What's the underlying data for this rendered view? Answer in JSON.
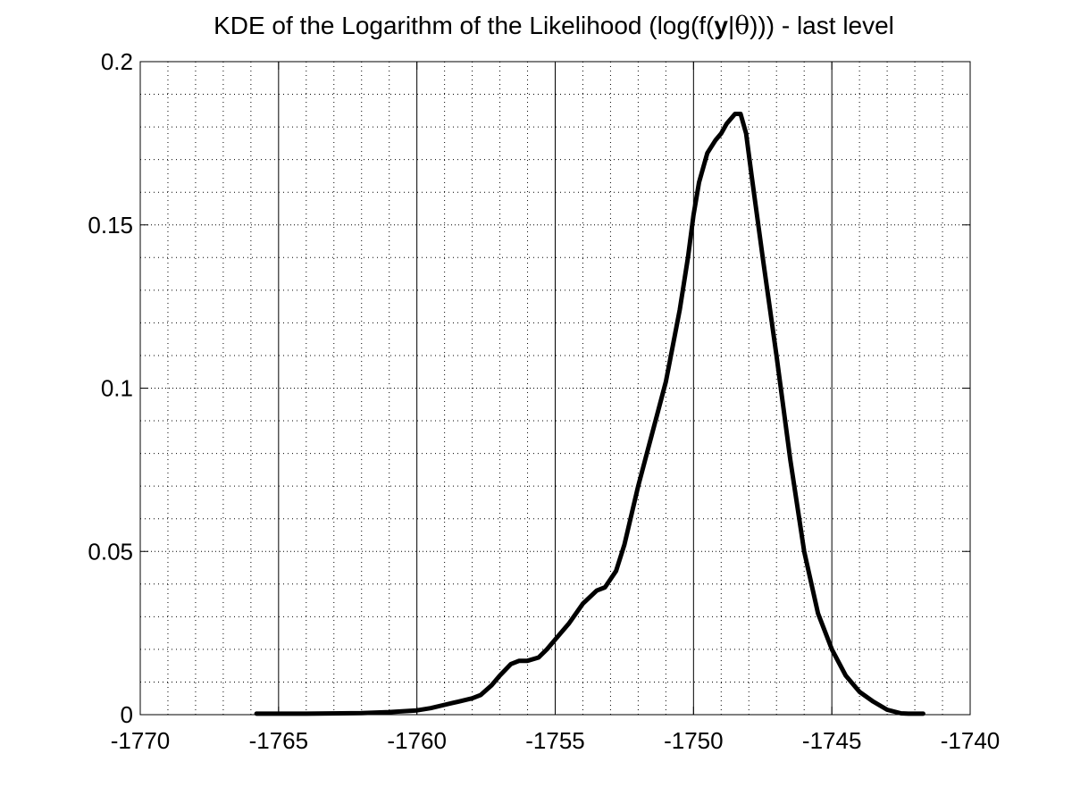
{
  "chart_data": {
    "type": "line",
    "title": {
      "prefix": "KDE of the Logarithm of the Likelihood (log(f(",
      "bold": "y",
      "bar": "|",
      "theta": "θ",
      "suffix": "))) - last level"
    },
    "xlabel": "",
    "ylabel": "",
    "xlim": [
      -1770,
      -1740
    ],
    "ylim": [
      0,
      0.2
    ],
    "xticks": [
      -1770,
      -1765,
      -1760,
      -1755,
      -1750,
      -1745,
      -1740
    ],
    "xtick_labels": [
      "-1770",
      "-1765",
      "-1760",
      "-1755",
      "-1750",
      "-1745",
      "-1740"
    ],
    "yticks": [
      0,
      0.05,
      0.1,
      0.15,
      0.2
    ],
    "ytick_labels": [
      "0",
      "0.05",
      "0.1",
      "0.15",
      "0.2"
    ],
    "grid": true,
    "line_color": "#000000",
    "series": [
      {
        "x": [
          -1765.8,
          -1764,
          -1762,
          -1761,
          -1760,
          -1759.5,
          -1759,
          -1758.5,
          -1758,
          -1757.7,
          -1757.3,
          -1757,
          -1756.6,
          -1756.3,
          -1756,
          -1755.6,
          -1755.3,
          -1755,
          -1754.5,
          -1754,
          -1753.5,
          -1753.2,
          -1752.8,
          -1752.5,
          -1752,
          -1751.5,
          -1751,
          -1750.5,
          -1750.2,
          -1750,
          -1749.8,
          -1749.5,
          -1749.2,
          -1749,
          -1748.8,
          -1748.5,
          -1748.3,
          -1748.1,
          -1747.9,
          -1747.5,
          -1747,
          -1746.5,
          -1746,
          -1745.5,
          -1745,
          -1744.5,
          -1744,
          -1743.5,
          -1743,
          -1742.5,
          -1742.2,
          -1741.7
        ],
        "y": [
          0.0003,
          0.0003,
          0.0005,
          0.0008,
          0.0013,
          0.002,
          0.003,
          0.004,
          0.005,
          0.006,
          0.009,
          0.012,
          0.0155,
          0.0165,
          0.0165,
          0.0175,
          0.02,
          0.023,
          0.028,
          0.034,
          0.038,
          0.039,
          0.044,
          0.052,
          0.07,
          0.086,
          0.102,
          0.124,
          0.14,
          0.153,
          0.163,
          0.172,
          0.176,
          0.178,
          0.181,
          0.184,
          0.184,
          0.178,
          0.165,
          0.14,
          0.11,
          0.078,
          0.05,
          0.031,
          0.02,
          0.012,
          0.007,
          0.004,
          0.0015,
          0.0004,
          0.0003,
          0.0003
        ]
      }
    ]
  }
}
